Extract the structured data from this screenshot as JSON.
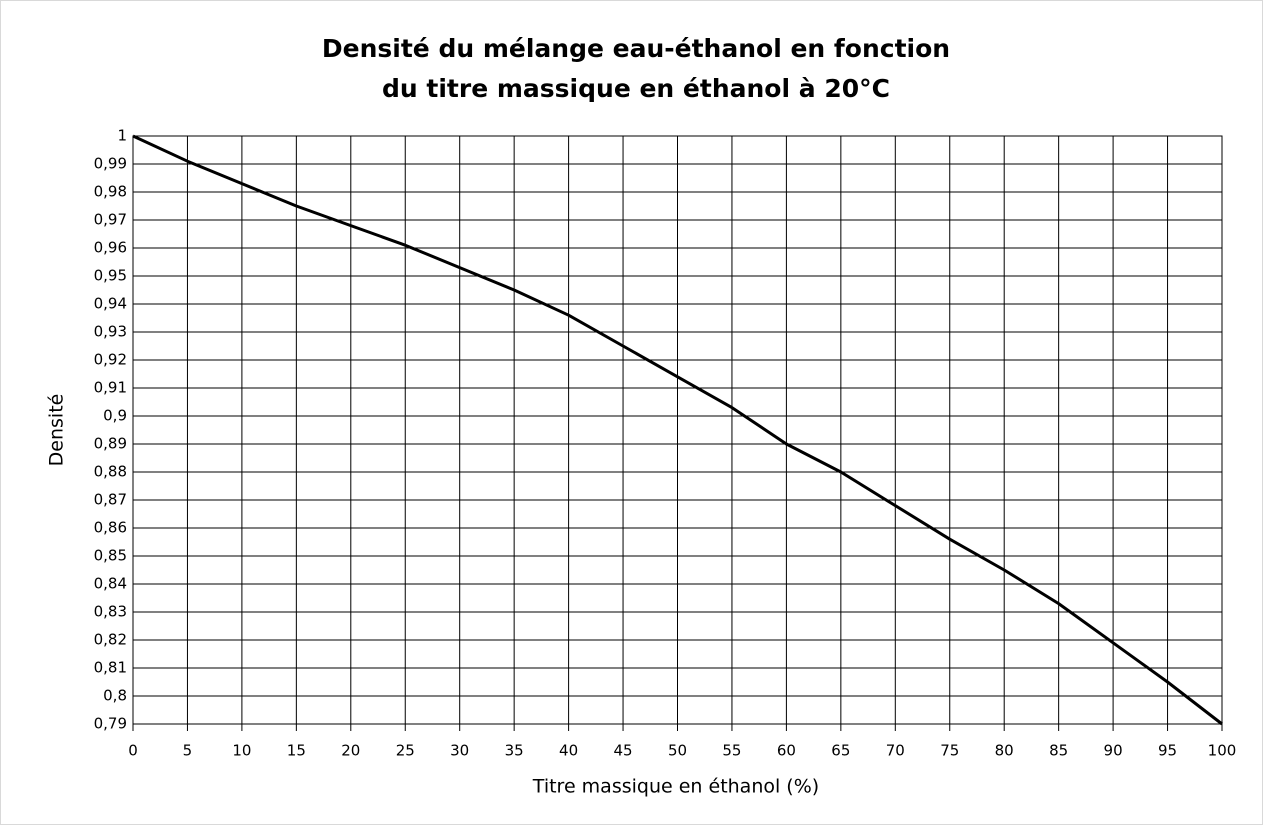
{
  "chart_data": {
    "type": "line",
    "title": [
      "Densité du mélange eau-éthanol en fonction",
      "du titre massique en éthanol à 20°C"
    ],
    "xlabel": "Titre massique en éthanol (%)",
    "ylabel": "Densité",
    "x": [
      0,
      5,
      10,
      15,
      20,
      25,
      30,
      35,
      40,
      45,
      50,
      55,
      60,
      65,
      70,
      75,
      80,
      85,
      90,
      95,
      100
    ],
    "series": [
      {
        "name": "Densité",
        "color": "#000000",
        "values": [
          1.0,
          0.991,
          0.983,
          0.975,
          0.968,
          0.961,
          0.953,
          0.945,
          0.936,
          0.925,
          0.914,
          0.903,
          0.89,
          0.88,
          0.868,
          0.856,
          0.845,
          0.833,
          0.819,
          0.805,
          0.79
        ]
      }
    ],
    "xlim": [
      0,
      100
    ],
    "xticks": [
      0,
      5,
      10,
      15,
      20,
      25,
      30,
      35,
      40,
      45,
      50,
      55,
      60,
      65,
      70,
      75,
      80,
      85,
      90,
      95,
      100
    ],
    "ylim": [
      0.79,
      1
    ],
    "yticks": [
      {
        "value": 0.79,
        "label": "0,79"
      },
      {
        "value": 0.8,
        "label": "0,8"
      },
      {
        "value": 0.81,
        "label": "0,81"
      },
      {
        "value": 0.82,
        "label": "0,82"
      },
      {
        "value": 0.83,
        "label": "0,83"
      },
      {
        "value": 0.84,
        "label": "0,84"
      },
      {
        "value": 0.85,
        "label": "0,85"
      },
      {
        "value": 0.86,
        "label": "0,86"
      },
      {
        "value": 0.87,
        "label": "0,87"
      },
      {
        "value": 0.88,
        "label": "0,88"
      },
      {
        "value": 0.89,
        "label": "0,89"
      },
      {
        "value": 0.9,
        "label": "0,9"
      },
      {
        "value": 0.91,
        "label": "0,91"
      },
      {
        "value": 0.92,
        "label": "0,92"
      },
      {
        "value": 0.93,
        "label": "0,93"
      },
      {
        "value": 0.94,
        "label": "0,94"
      },
      {
        "value": 0.95,
        "label": "0,95"
      },
      {
        "value": 0.96,
        "label": "0,96"
      },
      {
        "value": 0.97,
        "label": "0,97"
      },
      {
        "value": 0.98,
        "label": "0,98"
      },
      {
        "value": 0.99,
        "label": "0,99"
      },
      1
    ],
    "grid": true
  }
}
